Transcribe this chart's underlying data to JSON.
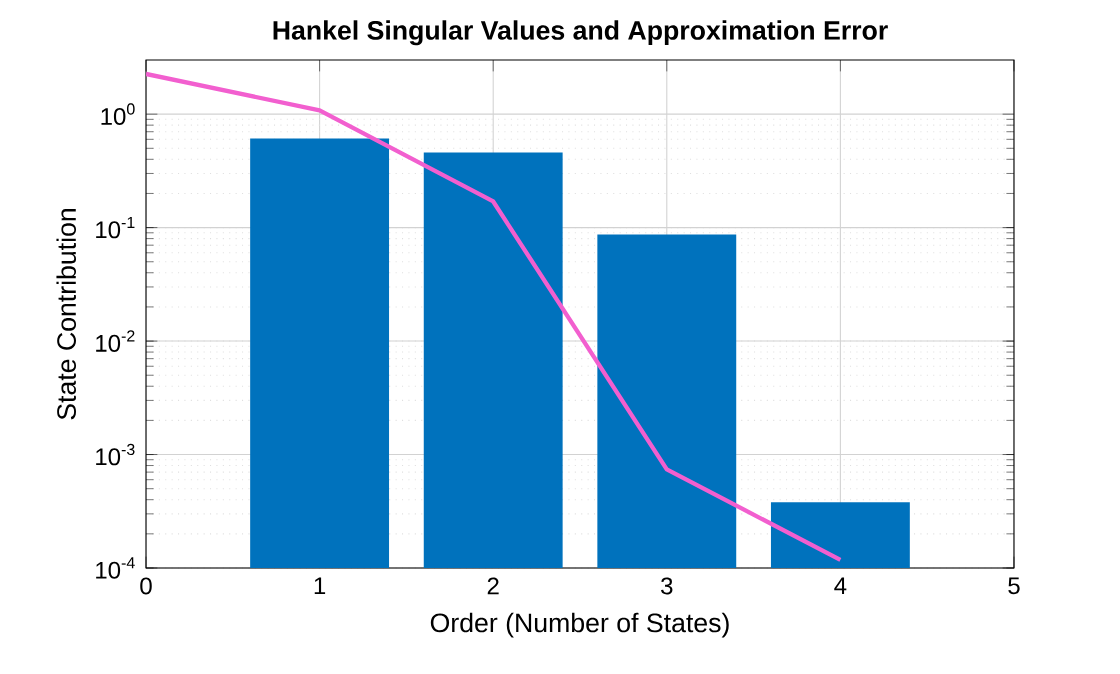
{
  "chart_data": {
    "type": "bar",
    "title": "Hankel Singular Values and Approximation Error",
    "xlabel": "Order (Number of States)",
    "ylabel": "State Contribution",
    "log": "y",
    "grid": true,
    "xlim": [
      0,
      5
    ],
    "xticks": [
      0,
      1,
      2,
      3,
      4,
      5
    ],
    "ylim": [
      0.0001,
      3
    ],
    "yticks": [
      {
        "value": 0.0001,
        "label": "10$^{-4}$"
      },
      {
        "value": 0.001,
        "label": "10$^{-3}$"
      },
      {
        "value": 0.01,
        "label": "10$^{-2}$"
      },
      {
        "value": 0.1,
        "label": "10$^{-1}$"
      },
      {
        "value": 1,
        "label": "10$^{0}$"
      }
    ],
    "series": [
      {
        "color": "#0072bd",
        "x": [
          1,
          2,
          3,
          4
        ],
        "values": [
          0.61,
          0.46,
          0.087,
          0.00038
        ]
      },
      {
        "type": "line",
        "color": "#f25fcf",
        "line_style": "solid",
        "x": [
          0,
          1,
          2,
          3,
          4
        ],
        "values": [
          2.26,
          1.08,
          0.17,
          0.00074,
          0.000118
        ]
      }
    ]
  }
}
